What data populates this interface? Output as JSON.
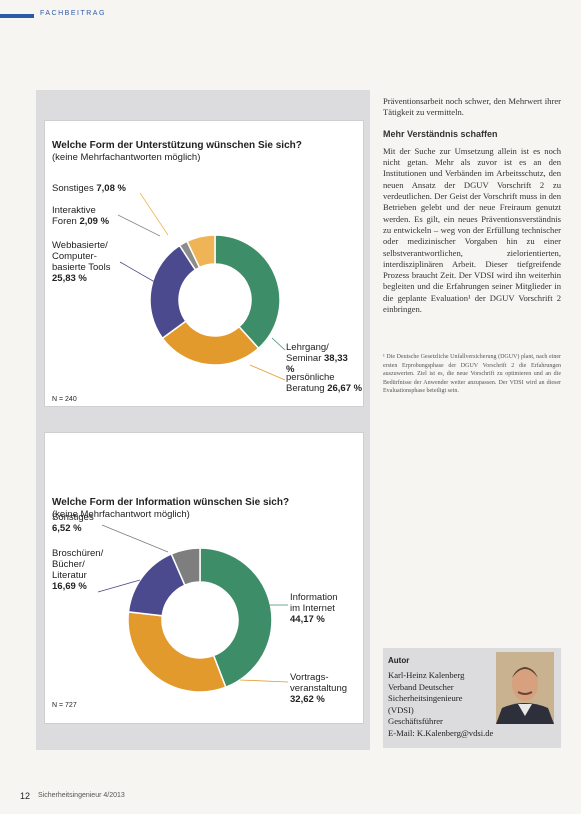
{
  "header": {
    "section": "FACHBEITRAG"
  },
  "chart_data": [
    {
      "type": "donut",
      "title": "Welche Form der Unterstützung wünschen Sie sich?",
      "subtitle": "(keine Mehrfachantworten möglich)",
      "note": "N = 240",
      "categories": [
        "Lehrgang/ Seminar",
        "persönliche Beratung",
        "Webbasierte/ Computer-basierte Tools",
        "Interaktive Foren",
        "Sonstiges"
      ],
      "values": [
        38.33,
        26.67,
        25.83,
        2.09,
        7.08
      ],
      "value_labels": [
        "38,33 %",
        "26,67 %",
        "25,83 %",
        "2,09 %",
        "7,08 %"
      ],
      "colors": [
        "#3e8d69",
        "#e39a2c",
        "#4b4a8e",
        "#8c8c8c",
        "#efb456"
      ]
    },
    {
      "type": "donut",
      "title": "Welche Form der Information wünschen Sie sich?",
      "subtitle": "(keine Mehrfachantwort möglich)",
      "note": "N = 727",
      "categories": [
        "Information im Internet",
        "Vortrags-veranstaltung",
        "Broschüren/ Bücher/ Literatur",
        "Sonstiges"
      ],
      "values": [
        44.17,
        32.62,
        16.69,
        6.52
      ],
      "value_labels": [
        "44,17 %",
        "32,62 %",
        "16,69 %",
        "6,52 %"
      ],
      "colors": [
        "#3e8d69",
        "#e39a2c",
        "#4b4a8e",
        "#7e7e7e"
      ]
    }
  ],
  "article": {
    "intro": "Präventionsarbeit noch schwer, den Mehrwert ihrer Tätigkeit zu vermitteln.",
    "heading": "Mehr Verständnis schaffen",
    "body": "Mit der Suche zur Umsetzung allein ist es noch nicht getan. Mehr als zuvor ist es an den Institutionen und Verbänden im Arbeitsschutz, den neuen Ansatz der DGUV Vorschrift 2 zu verdeutlichen. Der Geist der Vorschrift muss in den Betrieben gelebt und der neue Freiraum genutzt werden. Es gilt, ein neues Präventionsverständnis zu entwickeln – weg von der Erfüllung technischer oder medizinischer Vorgaben hin zu einer selbstverantwortlichen, zielorientierten, interdisziplinären Arbeit. Dieser tiefgreifende Prozess braucht Zeit. Der VDSI wird ihn weiterhin begleiten und die Erfahrungen seiner Mitglieder in die geplante Evaluation¹ der DGUV Vorschrift 2 einbringen.",
    "footnote": "¹ Die Deutsche Gesetzliche Unfallversicherung (DGUV) plant, nach einer ersten Erprobungsphase der DGUV Vorschrift 2 die Erfahrungen auszuwerten. Ziel ist es, die neue Vorschrift zu optimieren und an die Bedürfnisse der Anwender weiter anzupassen. Der VDSI wird an dieser Evaluationsphase beteiligt sein."
  },
  "author": {
    "label": "Autor",
    "name": "Karl-Heinz Kalenberg",
    "org": "Verband Deutscher Sicherheitsingenieure (VDSI)",
    "role": "Geschäftsführer",
    "email": "E-Mail: K.Kalenberg@vdsi.de"
  },
  "footer": {
    "page": "12",
    "journal": "Sicherheitsingenieur 4/2013"
  }
}
